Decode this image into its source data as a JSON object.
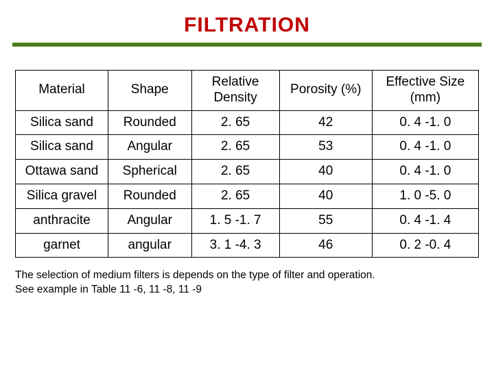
{
  "title": "FILTRATION",
  "colors": {
    "title_color": "#c00000",
    "rule_color": "#4a7c1c",
    "border_color": "#000000",
    "background": "#ffffff",
    "text_color": "#000000"
  },
  "table": {
    "type": "table",
    "columns": [
      {
        "label": "Material",
        "width_pct": 20
      },
      {
        "label": "Shape",
        "width_pct": 18
      },
      {
        "label": "Relative Density",
        "width_pct": 19
      },
      {
        "label": "Porosity (%)",
        "width_pct": 20
      },
      {
        "label": "Effective Size (mm)",
        "width_pct": 23
      }
    ],
    "rows": [
      {
        "material": "Silica sand",
        "shape": "Rounded",
        "density": "2. 65",
        "porosity": "42",
        "size": "0. 4 -1. 0"
      },
      {
        "material": "Silica sand",
        "shape": "Angular",
        "density": "2. 65",
        "porosity": "53",
        "size": "0. 4 -1. 0"
      },
      {
        "material": "Ottawa sand",
        "shape": "Spherical",
        "density": "2. 65",
        "porosity": "40",
        "size": "0. 4 -1. 0"
      },
      {
        "material": "Silica gravel",
        "shape": "Rounded",
        "density": "2. 65",
        "porosity": "40",
        "size": "1. 0 -5. 0"
      },
      {
        "material": "anthracite",
        "shape": "Angular",
        "density": "1. 5 -1. 7",
        "porosity": "55",
        "size": "0. 4 -1. 4"
      },
      {
        "material": "garnet",
        "shape": "angular",
        "density": "3. 1 -4. 3",
        "porosity": "46",
        "size": "0. 2 -0. 4"
      }
    ],
    "header_fontsize": 19,
    "cell_fontsize": 19,
    "border_width": 1.5
  },
  "caption_line1": "The selection of medium filters is depends on the type of filter and operation.",
  "caption_line2": "See example in Table 11 -6, 11 -8, 11 -9",
  "typography": {
    "title_fontsize": 30,
    "title_weight": 900,
    "body_font": "Arial",
    "caption_fontsize": 15.5
  }
}
